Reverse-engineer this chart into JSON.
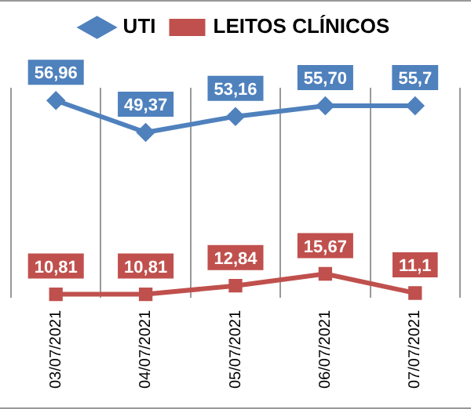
{
  "chart_data": {
    "type": "line",
    "categories": [
      "03/07/2021",
      "04/07/2021",
      "05/07/2021",
      "06/07/2021",
      "07/07/2021"
    ],
    "series": [
      {
        "name": "UTI",
        "color": "#4f81bd",
        "marker": "diamond",
        "values": [
          56.96,
          49.37,
          53.16,
          55.7,
          55.7
        ],
        "value_labels": [
          "56,96",
          "49,37",
          "53,16",
          "55,70",
          "55,7"
        ]
      },
      {
        "name": "LEITOS CLÍNICOS",
        "color": "#c0504d",
        "marker": "square",
        "values": [
          10.81,
          10.81,
          12.84,
          15.67,
          11.1
        ],
        "value_labels": [
          "10,81",
          "10,81",
          "12,84",
          "15,67",
          "11,1"
        ]
      }
    ],
    "grid": "x",
    "legend": "top",
    "tick_labels": "x"
  }
}
